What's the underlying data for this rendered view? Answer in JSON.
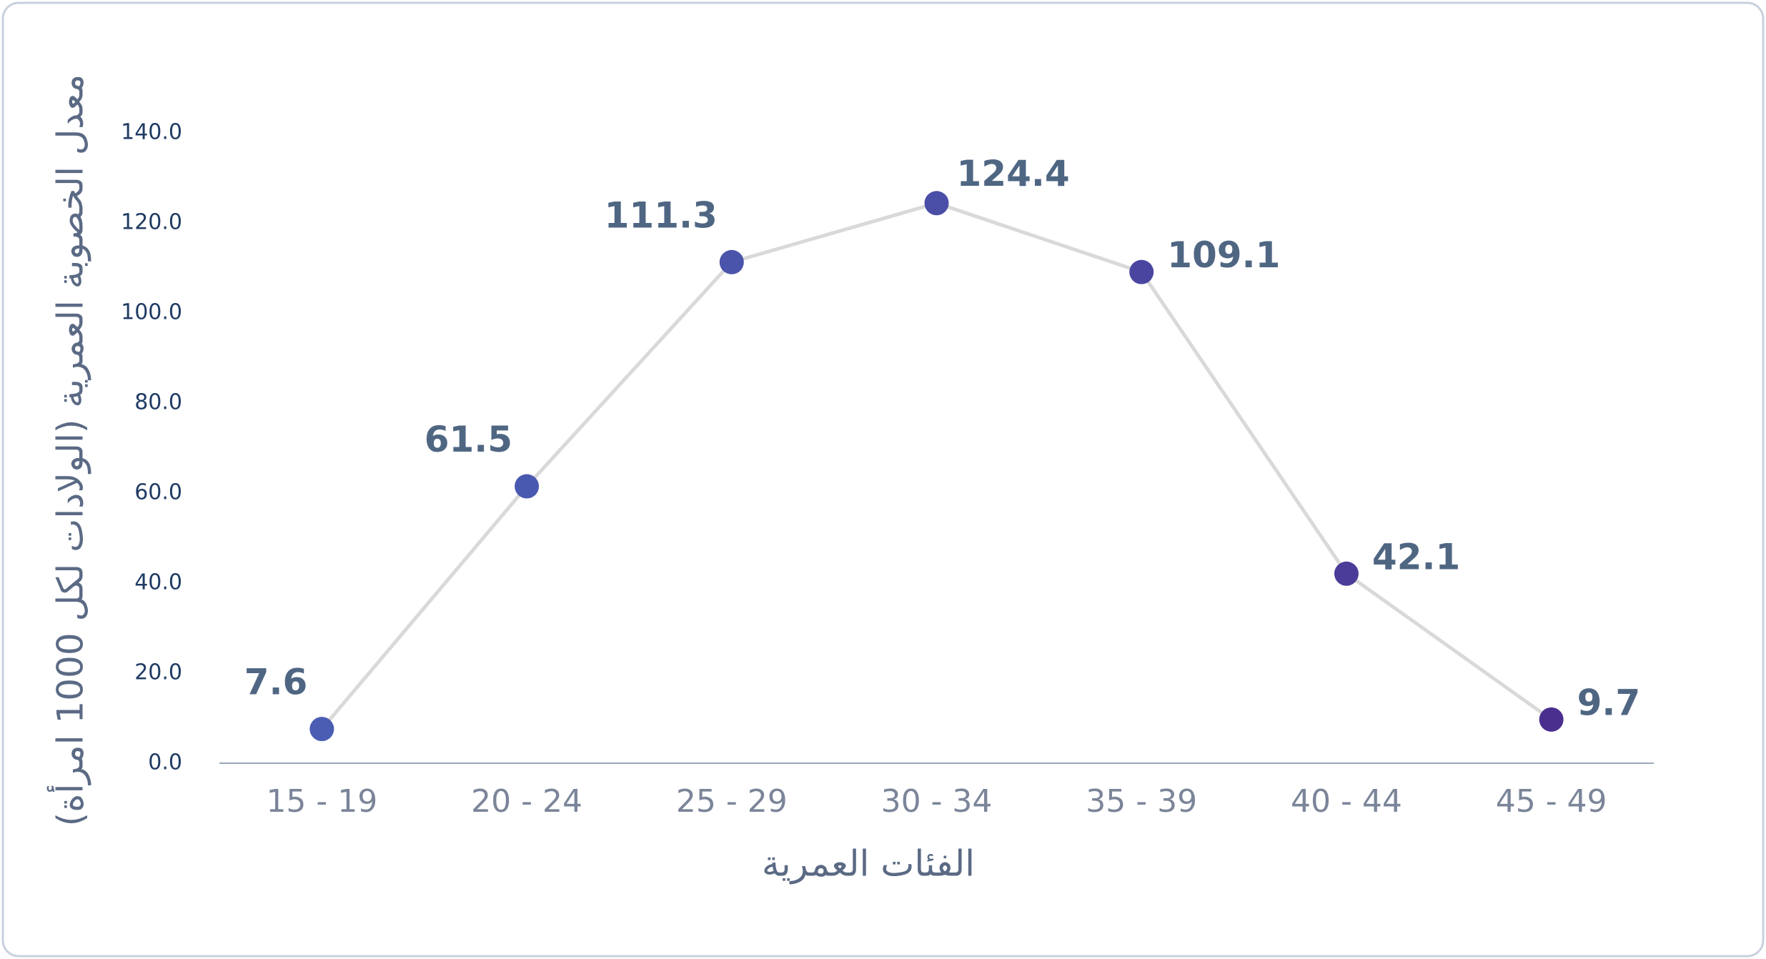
{
  "chart_data": {
    "type": "line",
    "x_label": "الفئات العمرية",
    "y_label": "معدل الخصوبة العمرية (الولادات لكل 1000 امرأة)",
    "categories": [
      "15 - 19",
      "20 - 24",
      "25 - 29",
      "30 - 34",
      "35 - 39",
      "40 - 44",
      "45 - 49"
    ],
    "values": [
      7.6,
      61.5,
      111.3,
      124.4,
      109.1,
      42.1,
      9.7
    ],
    "line_color": "#d9d9d9",
    "point_colors": [
      "#4a5db3",
      "#4a59b0",
      "#4a54ab",
      "#4a4ea6",
      "#4a46a0",
      "#4a3c98",
      "#4a2f8e"
    ],
    "ylim": [
      0,
      140
    ],
    "yticks": [
      {
        "value": 0,
        "label": "0.0"
      },
      {
        "value": 20,
        "label": "20.0"
      },
      {
        "value": 40,
        "label": "40.0"
      },
      {
        "value": 60,
        "label": "60.0"
      },
      {
        "value": 80,
        "label": "80.0"
      },
      {
        "value": 100,
        "label": "100.0"
      },
      {
        "value": 120,
        "label": "120.0"
      },
      {
        "value": 140,
        "label": "140.0"
      }
    ],
    "grid": false
  }
}
